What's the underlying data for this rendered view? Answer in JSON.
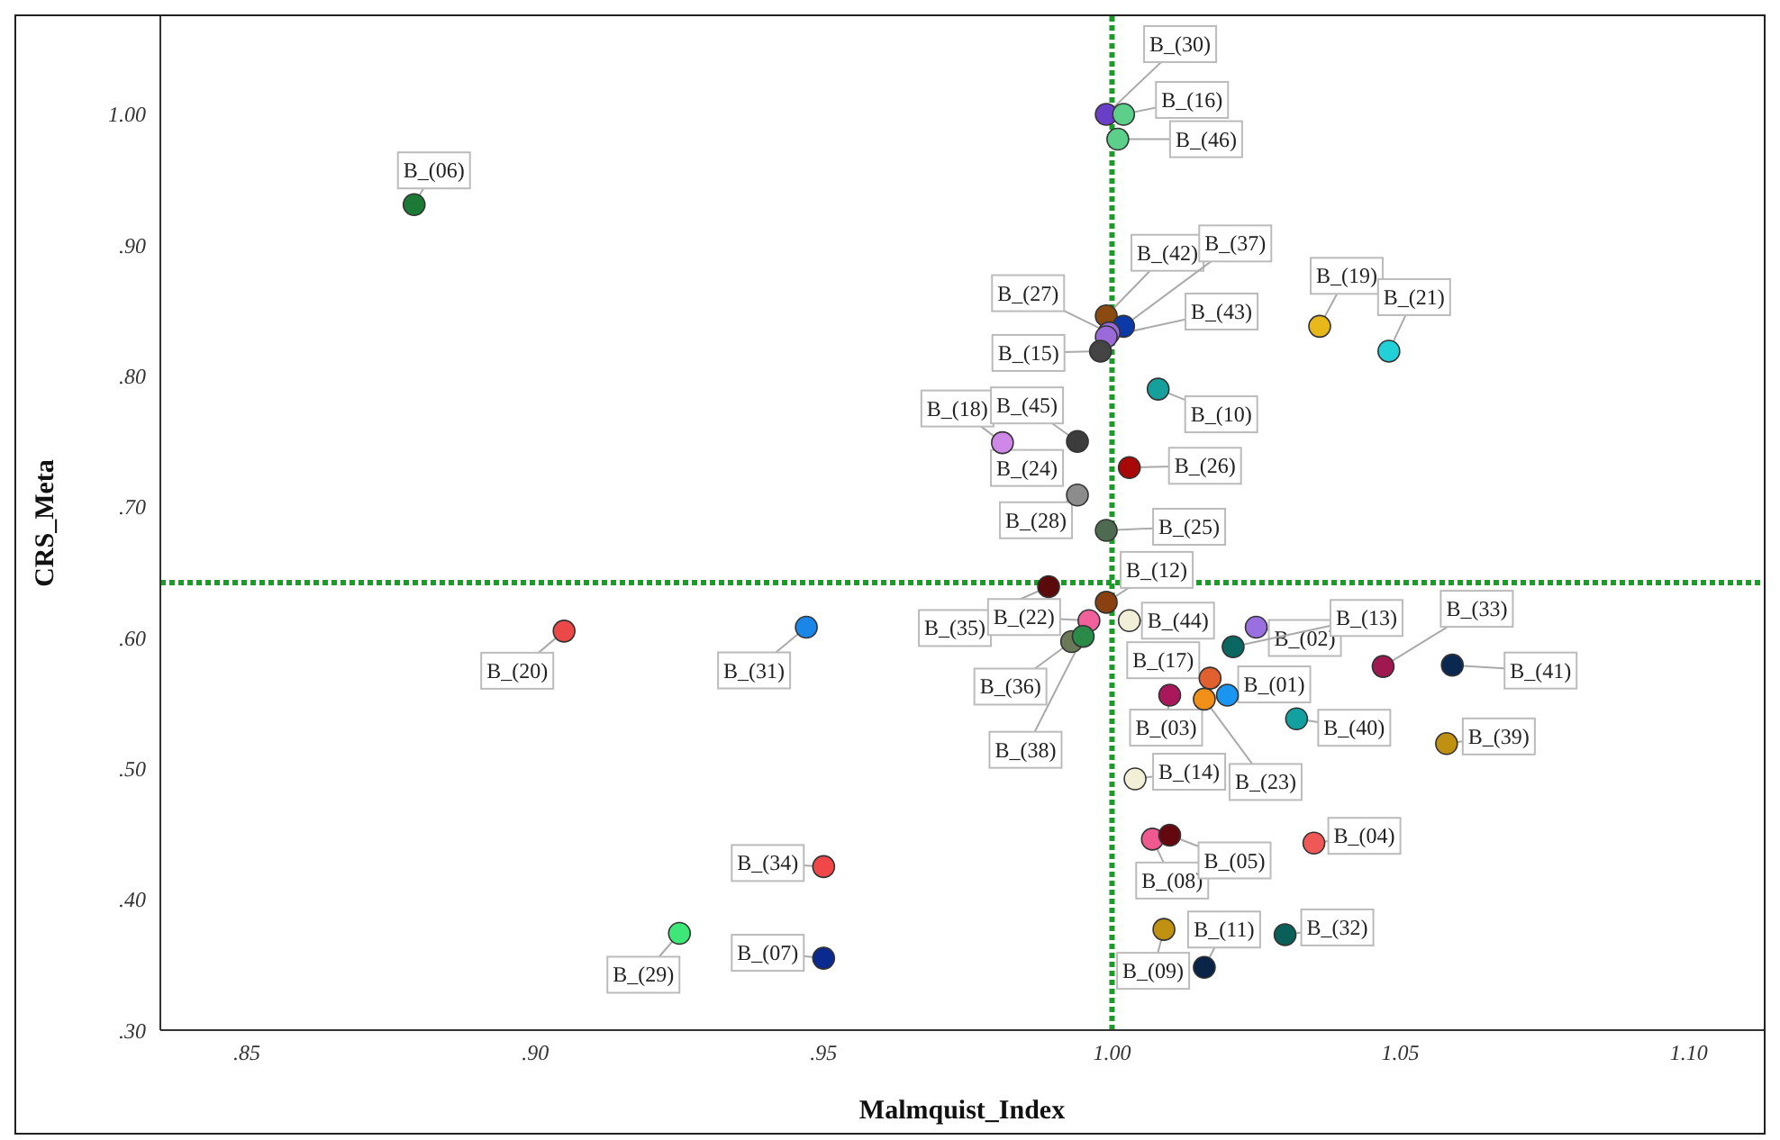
{
  "chart_data": {
    "type": "scatter",
    "xlabel": "Malmquist_Index",
    "ylabel": "CRS_Meta",
    "marker": "circle",
    "grid": false,
    "legend": false,
    "xlim": [
      0.835,
      1.113
    ],
    "ylim": [
      0.3,
      1.075
    ],
    "xticks": [
      {
        "value": 0.85,
        "label": ".85"
      },
      {
        "value": 0.9,
        "label": ".90"
      },
      {
        "value": 0.95,
        "label": ".95"
      },
      {
        "value": 1.0,
        "label": "1.00"
      },
      {
        "value": 1.05,
        "label": "1.05"
      },
      {
        "value": 1.1,
        "label": "1.10"
      }
    ],
    "yticks": [
      {
        "value": 0.3,
        "label": ".30"
      },
      {
        "value": 0.4,
        "label": ".40"
      },
      {
        "value": 0.5,
        "label": ".50"
      },
      {
        "value": 0.6,
        "label": ".60"
      },
      {
        "value": 0.7,
        "label": ".70"
      },
      {
        "value": 0.8,
        "label": ".80"
      },
      {
        "value": 0.9,
        "label": ".90"
      },
      {
        "value": 1.0,
        "label": "1.00"
      }
    ],
    "annotations": [
      {
        "text": "B_(24)",
        "x": 0.994,
        "y": 0.749
      }
    ],
    "ref_lines": [
      {
        "axis": "x",
        "value": 1.0,
        "color": "#1e9a2a",
        "line_style": "dotted"
      },
      {
        "axis": "y",
        "value": 0.642,
        "color": "#1e9a2a",
        "line_style": "dotted"
      }
    ],
    "series": [
      {
        "name": "B_(06)",
        "color": "#1b7a36",
        "x": [
          0.879
        ],
        "values": [
          0.931
        ]
      },
      {
        "name": "B_(30)",
        "color": "#6a3fc8",
        "x": [
          0.999
        ],
        "values": [
          1.0
        ]
      },
      {
        "name": "B_(16)",
        "color": "#5ccf8a",
        "x": [
          1.002
        ],
        "values": [
          1.0
        ]
      },
      {
        "name": "B_(46)",
        "color": "#5ccf8a",
        "x": [
          1.001
        ],
        "values": [
          0.981
        ]
      },
      {
        "name": "B_(42)",
        "color": "#8a4a10",
        "x": [
          0.999
        ],
        "values": [
          0.846
        ]
      },
      {
        "name": "B_(37)",
        "color": "#0b3aa8",
        "x": [
          1.002
        ],
        "values": [
          0.838
        ]
      },
      {
        "name": "B_(27)",
        "color": "#9a6ad8",
        "x": [
          0.9995
        ],
        "values": [
          0.833
        ]
      },
      {
        "name": "B_(43)",
        "color": "#9a6ad8",
        "x": [
          0.999
        ],
        "values": [
          0.83
        ]
      },
      {
        "name": "B_(15)",
        "color": "#444444",
        "x": [
          0.998
        ],
        "values": [
          0.819
        ]
      },
      {
        "name": "B_(19)",
        "color": "#e8b81a",
        "x": [
          1.036
        ],
        "values": [
          0.838
        ]
      },
      {
        "name": "B_(21)",
        "color": "#22d0d8",
        "x": [
          1.048
        ],
        "values": [
          0.819
        ]
      },
      {
        "name": "B_(10)",
        "color": "#16a09c",
        "x": [
          1.008
        ],
        "values": [
          0.79
        ]
      },
      {
        "name": "B_(18)",
        "color": "#d088e8",
        "x": [
          0.981
        ],
        "values": [
          0.749
        ]
      },
      {
        "name": "B_(45)",
        "color": "#3c3c3c",
        "x": [
          0.994
        ],
        "values": [
          0.75
        ]
      },
      {
        "name": "B_(26)",
        "color": "#a80808",
        "x": [
          1.003
        ],
        "values": [
          0.73
        ]
      },
      {
        "name": "B_(28)",
        "color": "#8c8c8c",
        "x": [
          0.994
        ],
        "values": [
          0.709
        ]
      },
      {
        "name": "B_(25)",
        "color": "#4e6a50",
        "x": [
          0.999
        ],
        "values": [
          0.682
        ]
      },
      {
        "name": "B_(35)",
        "color": "#5a0a0a",
        "x": [
          0.989
        ],
        "values": [
          0.639
        ]
      },
      {
        "name": "B_(12)",
        "color": "#8a4010",
        "x": [
          0.999
        ],
        "values": [
          0.627
        ]
      },
      {
        "name": "B_(44)",
        "color": "#f2efd8",
        "x": [
          1.003
        ],
        "values": [
          0.613
        ]
      },
      {
        "name": "B_(22)",
        "color": "#f0609a",
        "x": [
          0.996
        ],
        "values": [
          0.613
        ]
      },
      {
        "name": "B_(36)",
        "color": "#6a7a58",
        "x": [
          0.993
        ],
        "values": [
          0.597
        ]
      },
      {
        "name": "B_(38)",
        "color": "#2a8a48",
        "x": [
          0.995
        ],
        "values": [
          0.601
        ]
      },
      {
        "name": "B_(20)",
        "color": "#ec4848",
        "x": [
          0.905
        ],
        "values": [
          0.605
        ]
      },
      {
        "name": "B_(31)",
        "color": "#1a86e8",
        "x": [
          0.947
        ],
        "values": [
          0.608
        ]
      },
      {
        "name": "B_(02)",
        "color": "#9a70e0",
        "x": [
          1.025
        ],
        "values": [
          0.608
        ]
      },
      {
        "name": "B_(13)",
        "color": "#0a6660",
        "x": [
          1.021
        ],
        "values": [
          0.593
        ]
      },
      {
        "name": "B_(33)",
        "color": "#a01850",
        "x": [
          1.047
        ],
        "values": [
          0.578
        ]
      },
      {
        "name": "B_(41)",
        "color": "#0a2850",
        "x": [
          1.059
        ],
        "values": [
          0.579
        ]
      },
      {
        "name": "B_(17)",
        "color": "#e06030",
        "x": [
          1.017
        ],
        "values": [
          0.569
        ]
      },
      {
        "name": "B_(01)",
        "color": "#1a96f0",
        "x": [
          1.02
        ],
        "values": [
          0.556
        ]
      },
      {
        "name": "B_(23)",
        "color": "#f09018",
        "x": [
          1.016
        ],
        "values": [
          0.553
        ]
      },
      {
        "name": "B_(03)",
        "color": "#a8185a",
        "x": [
          1.01
        ],
        "values": [
          0.556
        ]
      },
      {
        "name": "B_(40)",
        "color": "#12a0a0",
        "x": [
          1.032
        ],
        "values": [
          0.538
        ]
      },
      {
        "name": "B_(39)",
        "color": "#c09010",
        "x": [
          1.058
        ],
        "values": [
          0.519
        ]
      },
      {
        "name": "B_(14)",
        "color": "#f2efd8",
        "x": [
          1.004
        ],
        "values": [
          0.492
        ]
      },
      {
        "name": "B_(08)",
        "color": "#f05890",
        "x": [
          1.007
        ],
        "values": [
          0.446
        ]
      },
      {
        "name": "B_(05)",
        "color": "#640810",
        "x": [
          1.01
        ],
        "values": [
          0.449
        ]
      },
      {
        "name": "B_(04)",
        "color": "#f05858",
        "x": [
          1.035
        ],
        "values": [
          0.443
        ]
      },
      {
        "name": "B_(34)",
        "color": "#f04848",
        "x": [
          0.95
        ],
        "values": [
          0.425
        ]
      },
      {
        "name": "B_(29)",
        "color": "#3ee878",
        "x": [
          0.925
        ],
        "values": [
          0.374
        ]
      },
      {
        "name": "B_(07)",
        "color": "#0a2a90",
        "x": [
          0.95
        ],
        "values": [
          0.355
        ]
      },
      {
        "name": "B_(09)",
        "color": "#c09010",
        "x": [
          1.009
        ],
        "values": [
          0.377
        ]
      },
      {
        "name": "B_(32)",
        "color": "#0a6058",
        "x": [
          1.03
        ],
        "values": [
          0.373
        ]
      },
      {
        "name": "B_(11)",
        "color": "#0a2448",
        "x": [
          1.016
        ],
        "values": [
          0.348
        ]
      }
    ]
  }
}
